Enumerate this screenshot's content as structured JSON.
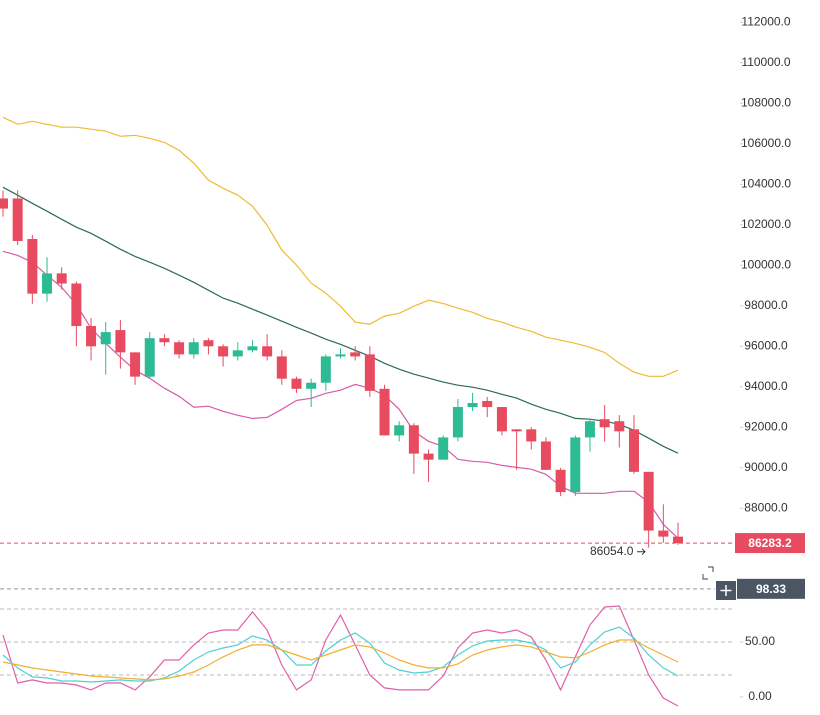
{
  "chart_data": [
    {
      "type": "candlestick",
      "open": [
        103300,
        103300,
        101300,
        98600,
        99600,
        99100,
        97000,
        96100,
        96800,
        95700,
        94500,
        96400,
        96200,
        95600,
        96300,
        96000,
        95500,
        95800,
        96000,
        95500,
        94400,
        93900,
        94200,
        95500,
        95700,
        95600,
        93900,
        91600,
        92100,
        90700,
        90400,
        91500,
        93000,
        93300,
        93000,
        91900,
        91900,
        91300,
        89900,
        88800,
        91500,
        92400,
        92300,
        91900,
        89800,
        86900,
        86600
      ],
      "high": [
        103700,
        103700,
        101500,
        100400,
        99900,
        99200,
        97400,
        97200,
        97300,
        95700,
        96700,
        96600,
        96300,
        96400,
        96400,
        96100,
        96200,
        96300,
        96600,
        95800,
        94500,
        94400,
        95600,
        95900,
        96000,
        96000,
        94100,
        92300,
        92200,
        90900,
        91600,
        93400,
        93700,
        93500,
        93000,
        91900,
        92000,
        91500,
        90000,
        91600,
        92400,
        93100,
        92600,
        92600,
        89800,
        88200,
        87300
      ],
      "low": [
        102400,
        101000,
        98100,
        98200,
        98800,
        96000,
        95300,
        94600,
        94900,
        94100,
        94400,
        96000,
        95400,
        95400,
        95600,
        95000,
        95300,
        95700,
        95300,
        94100,
        93700,
        93000,
        93800,
        95400,
        95300,
        93500,
        91600,
        91300,
        89700,
        89300,
        90400,
        91300,
        92800,
        92500,
        91600,
        89900,
        90900,
        89900,
        88600,
        88600,
        90800,
        91300,
        91000,
        89700,
        86054,
        86300,
        86200
      ],
      "close": [
        102800,
        101200,
        98600,
        99600,
        99100,
        97000,
        96000,
        96700,
        95700,
        94500,
        96400,
        96200,
        95600,
        96200,
        96000,
        95500,
        95800,
        96000,
        95500,
        94400,
        93900,
        94200,
        95500,
        95600,
        95500,
        93800,
        91600,
        92100,
        90700,
        90400,
        91500,
        93000,
        93200,
        93000,
        91800,
        91800,
        91300,
        89900,
        88800,
        91500,
        92300,
        92000,
        91800,
        89800,
        86900,
        86600,
        86283.2
      ],
      "up_color": "#2dbb94",
      "down_color": "#e84a5f",
      "lines": [
        {
          "color": "#eebb33",
          "values": [
            107310,
            106960,
            107110,
            106960,
            106820,
            106820,
            106720,
            106620,
            106370,
            106420,
            106270,
            106070,
            105680,
            105040,
            104200,
            103800,
            103460,
            102920,
            101980,
            100750,
            100010,
            99120,
            98620,
            97980,
            97190,
            97090,
            97490,
            97630,
            97980,
            98270,
            98120,
            97880,
            97680,
            97380,
            97190,
            96940,
            96740,
            96450,
            96300,
            96150,
            95950,
            95700,
            95160,
            94720,
            94520,
            94520,
            94820
          ]
        },
        {
          "color": "#2e6b52",
          "values": [
            103850,
            103460,
            103060,
            102670,
            102270,
            101880,
            101580,
            101190,
            100790,
            100440,
            100150,
            99850,
            99510,
            99160,
            98770,
            98380,
            98130,
            97830,
            97540,
            97240,
            96940,
            96650,
            96350,
            96100,
            95800,
            95510,
            95160,
            94870,
            94620,
            94430,
            94230,
            94080,
            93980,
            93830,
            93630,
            93440,
            93140,
            92890,
            92690,
            92440,
            92400,
            92300,
            92150,
            91850,
            91460,
            91060,
            90720
          ]
        },
        {
          "color": "#d85aa8",
          "values": [
            100690,
            100490,
            100150,
            99510,
            98910,
            98070,
            96890,
            96150,
            95460,
            94820,
            94420,
            93930,
            93530,
            92990,
            93040,
            92790,
            92590,
            92440,
            92490,
            92890,
            93330,
            93430,
            93680,
            93830,
            94120,
            93930,
            93580,
            92890,
            91800,
            91310,
            91060,
            90420,
            90320,
            90270,
            90120,
            90020,
            89930,
            89680,
            89090,
            88740,
            88740,
            88740,
            88840,
            88840,
            88300,
            87210,
            86520
          ]
        }
      ],
      "ylim": [
        85200,
        113100
      ],
      "yticks": [
        {
          "value": 88000,
          "label": "88000.0"
        },
        {
          "value": 90000,
          "label": "90000.0"
        },
        {
          "value": 92000,
          "label": "92000.0"
        },
        {
          "value": 94000,
          "label": "94000.0"
        },
        {
          "value": 96000,
          "label": "96000.0"
        },
        {
          "value": 98000,
          "label": "98000.0"
        },
        {
          "value": 100000,
          "label": "100000.0"
        },
        {
          "value": 102000,
          "label": "102000.0"
        },
        {
          "value": 104000,
          "label": "104000.0"
        },
        {
          "value": 106000,
          "label": "106000.0"
        },
        {
          "value": 108000,
          "label": "108000.0"
        },
        {
          "value": 110000,
          "label": "110000.0"
        },
        {
          "value": 112000,
          "label": "112000.0"
        }
      ],
      "last_price": 86283.2,
      "low_annotation": {
        "value": 86054,
        "label": "86054.0"
      }
    },
    {
      "type": "line",
      "series": [
        {
          "color": "#e060a8",
          "values": [
            56.4,
            12.7,
            15.5,
            12.7,
            12.7,
            10.9,
            6.4,
            12.7,
            12.7,
            6.4,
            18.2,
            33.6,
            33.6,
            47.3,
            58.2,
            60.9,
            60.9,
            77.3,
            60.9,
            29.1,
            6.4,
            15.5,
            51.8,
            74.5,
            47.3,
            20.0,
            8.2,
            6.4,
            6.4,
            6.4,
            19.1,
            44.5,
            58.2,
            60.9,
            58.2,
            60.9,
            54.5,
            33.6,
            6.4,
            36.4,
            65.5,
            81.8,
            82.7,
            51.8,
            20.0,
            -0.9,
            -8.2
          ]
        },
        {
          "color": "#4fd0d0",
          "values": [
            38.2,
            26.4,
            18.2,
            17.3,
            14.5,
            14.5,
            13.6,
            14.5,
            15.5,
            14.5,
            14.5,
            17.3,
            23.6,
            33.6,
            40.9,
            44.5,
            47.3,
            55.5,
            51.8,
            42.7,
            29.1,
            29.1,
            41.8,
            51.8,
            58.2,
            49.1,
            30.9,
            24.5,
            21.8,
            22.7,
            27.3,
            38.2,
            46.4,
            50.9,
            51.8,
            51.8,
            49.1,
            42.7,
            26.4,
            31.8,
            47.3,
            59.1,
            63.6,
            53.6,
            38.2,
            26.4,
            19.1
          ]
        },
        {
          "color": "#f0b030",
          "values": [
            31.8,
            29.1,
            26.4,
            24.5,
            22.7,
            20.9,
            19.1,
            18.2,
            17.3,
            16.4,
            15.5,
            16.4,
            19.1,
            22.7,
            29.1,
            36.4,
            42.7,
            47.3,
            47.3,
            42.7,
            38.2,
            33.6,
            38.2,
            42.7,
            47.3,
            45.5,
            40.0,
            33.6,
            29.1,
            26.4,
            26.4,
            30.0,
            38.2,
            42.7,
            45.5,
            47.3,
            45.5,
            40.9,
            36.4,
            35.5,
            40.9,
            47.3,
            51.8,
            51.8,
            44.5,
            38.2,
            31.8
          ]
        }
      ],
      "ylim": [
        -16.4,
        110.9
      ],
      "yticks": [
        {
          "value": 50,
          "label": "50.00"
        },
        {
          "value": 0,
          "label": "0.00"
        }
      ],
      "levels": [
        20,
        50,
        80
      ],
      "last_value": 98.33
    }
  ]
}
